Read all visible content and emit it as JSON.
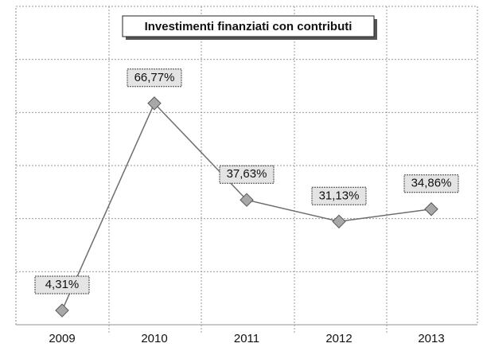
{
  "chart_data": {
    "type": "line",
    "title": "Investimenti finanziati con contributi",
    "categories": [
      "2009",
      "2010",
      "2011",
      "2012",
      "2013"
    ],
    "series": [
      {
        "name": "Investimenti finanziati con contributi",
        "color": "#6e6e6e",
        "values": [
          4.31,
          66.77,
          37.63,
          31.13,
          34.86
        ],
        "value_labels": [
          "4,31%",
          "66,77%",
          "37,63%",
          "31,13%",
          "34,86%"
        ]
      }
    ],
    "ylim": [
      0,
      96
    ],
    "yticks": [
      0,
      16,
      32,
      48,
      64,
      80,
      96
    ],
    "grid": true
  }
}
